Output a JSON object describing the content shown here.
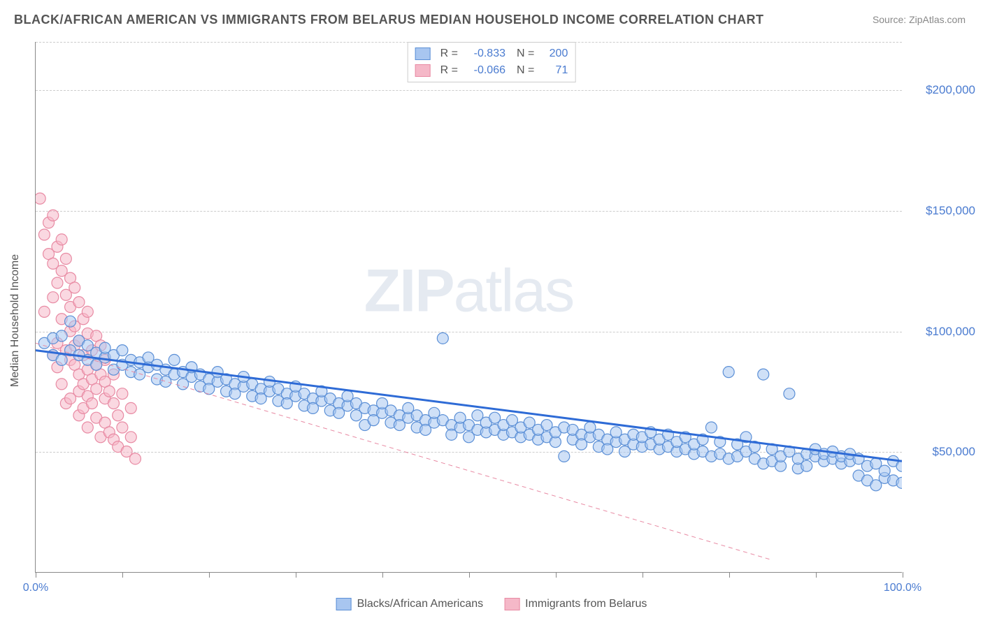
{
  "title": "BLACK/AFRICAN AMERICAN VS IMMIGRANTS FROM BELARUS MEDIAN HOUSEHOLD INCOME CORRELATION CHART",
  "source": "Source: ZipAtlas.com",
  "watermark_a": "ZIP",
  "watermark_b": "atlas",
  "chart": {
    "type": "scatter",
    "background_color": "#ffffff",
    "grid_color": "#cccccc",
    "axis_color": "#888888",
    "y_axis_label": "Median Household Income",
    "y_label_fontsize": 16,
    "x_domain": [
      0,
      100
    ],
    "y_domain": [
      0,
      220000
    ],
    "x_tick_positions": [
      0,
      10,
      20,
      30,
      40,
      50,
      60,
      70,
      80,
      90,
      100
    ],
    "x_tick_labels": {
      "0": "0.0%",
      "100": "100.0%"
    },
    "y_ticks": [
      {
        "v": 50000,
        "label": "$50,000"
      },
      {
        "v": 100000,
        "label": "$100,000"
      },
      {
        "v": 150000,
        "label": "$150,000"
      },
      {
        "v": 200000,
        "label": "$200,000"
      }
    ],
    "tick_label_color": "#4a7bd0",
    "tick_label_fontsize": 17,
    "marker_radius": 8,
    "marker_opacity": 0.55,
    "series": [
      {
        "name": "Blacks/African Americans",
        "fill_color": "#a8c6f0",
        "stroke_color": "#5b8fd6",
        "trend_color": "#2e6bd6",
        "trend_width": 3,
        "trend_dash": "none",
        "r": "-0.833",
        "r_label": "R =",
        "n": "200",
        "n_label": "N =",
        "trend_start": {
          "x": 0,
          "y": 92000
        },
        "trend_end": {
          "x": 100,
          "y": 46000
        },
        "points": [
          [
            1,
            95000
          ],
          [
            2,
            97000
          ],
          [
            2,
            90000
          ],
          [
            3,
            98000
          ],
          [
            3,
            88000
          ],
          [
            4,
            92000
          ],
          [
            4,
            104000
          ],
          [
            5,
            90000
          ],
          [
            5,
            96000
          ],
          [
            6,
            88000
          ],
          [
            6,
            94000
          ],
          [
            7,
            91000
          ],
          [
            7,
            86000
          ],
          [
            8,
            89000
          ],
          [
            8,
            93000
          ],
          [
            9,
            84000
          ],
          [
            9,
            90000
          ],
          [
            10,
            86000
          ],
          [
            10,
            92000
          ],
          [
            11,
            83000
          ],
          [
            11,
            88000
          ],
          [
            12,
            87000
          ],
          [
            12,
            82000
          ],
          [
            13,
            85000
          ],
          [
            13,
            89000
          ],
          [
            14,
            80000
          ],
          [
            14,
            86000
          ],
          [
            15,
            84000
          ],
          [
            15,
            79000
          ],
          [
            16,
            82000
          ],
          [
            16,
            88000
          ],
          [
            17,
            78000
          ],
          [
            17,
            83000
          ],
          [
            18,
            81000
          ],
          [
            18,
            85000
          ],
          [
            19,
            77000
          ],
          [
            19,
            82000
          ],
          [
            20,
            80000
          ],
          [
            20,
            76000
          ],
          [
            21,
            79000
          ],
          [
            21,
            83000
          ],
          [
            22,
            75000
          ],
          [
            22,
            80000
          ],
          [
            23,
            78000
          ],
          [
            23,
            74000
          ],
          [
            24,
            77000
          ],
          [
            24,
            81000
          ],
          [
            25,
            73000
          ],
          [
            25,
            78000
          ],
          [
            26,
            76000
          ],
          [
            26,
            72000
          ],
          [
            27,
            75000
          ],
          [
            27,
            79000
          ],
          [
            28,
            71000
          ],
          [
            28,
            76000
          ],
          [
            29,
            74000
          ],
          [
            29,
            70000
          ],
          [
            30,
            73000
          ],
          [
            30,
            77000
          ],
          [
            31,
            69000
          ],
          [
            31,
            74000
          ],
          [
            32,
            72000
          ],
          [
            32,
            68000
          ],
          [
            33,
            71000
          ],
          [
            33,
            75000
          ],
          [
            34,
            67000
          ],
          [
            34,
            72000
          ],
          [
            35,
            70000
          ],
          [
            35,
            66000
          ],
          [
            36,
            69000
          ],
          [
            36,
            73000
          ],
          [
            37,
            65000
          ],
          [
            37,
            70000
          ],
          [
            38,
            61000
          ],
          [
            38,
            68000
          ],
          [
            39,
            67000
          ],
          [
            39,
            63000
          ],
          [
            40,
            66000
          ],
          [
            40,
            70000
          ],
          [
            41,
            62000
          ],
          [
            41,
            67000
          ],
          [
            42,
            65000
          ],
          [
            42,
            61000
          ],
          [
            43,
            64000
          ],
          [
            43,
            68000
          ],
          [
            44,
            60000
          ],
          [
            44,
            65000
          ],
          [
            45,
            63000
          ],
          [
            45,
            59000
          ],
          [
            46,
            62000
          ],
          [
            46,
            66000
          ],
          [
            47,
            97000
          ],
          [
            47,
            63000
          ],
          [
            48,
            61000
          ],
          [
            48,
            57000
          ],
          [
            49,
            60000
          ],
          [
            49,
            64000
          ],
          [
            50,
            56000
          ],
          [
            50,
            61000
          ],
          [
            51,
            59000
          ],
          [
            51,
            65000
          ],
          [
            52,
            58000
          ],
          [
            52,
            62000
          ],
          [
            53,
            64000
          ],
          [
            53,
            59000
          ],
          [
            54,
            57000
          ],
          [
            54,
            61000
          ],
          [
            55,
            63000
          ],
          [
            55,
            58000
          ],
          [
            56,
            56000
          ],
          [
            56,
            60000
          ],
          [
            57,
            62000
          ],
          [
            57,
            57000
          ],
          [
            58,
            55000
          ],
          [
            58,
            59000
          ],
          [
            59,
            61000
          ],
          [
            59,
            56000
          ],
          [
            60,
            54000
          ],
          [
            60,
            58000
          ],
          [
            61,
            60000
          ],
          [
            61,
            48000
          ],
          [
            62,
            55000
          ],
          [
            62,
            59000
          ],
          [
            63,
            57000
          ],
          [
            63,
            53000
          ],
          [
            64,
            56000
          ],
          [
            64,
            60000
          ],
          [
            65,
            52000
          ],
          [
            65,
            57000
          ],
          [
            66,
            55000
          ],
          [
            66,
            51000
          ],
          [
            67,
            54000
          ],
          [
            67,
            58000
          ],
          [
            68,
            50000
          ],
          [
            68,
            55000
          ],
          [
            69,
            53000
          ],
          [
            69,
            57000
          ],
          [
            70,
            52000
          ],
          [
            70,
            56000
          ],
          [
            71,
            58000
          ],
          [
            71,
            53000
          ],
          [
            72,
            51000
          ],
          [
            72,
            55000
          ],
          [
            73,
            57000
          ],
          [
            73,
            52000
          ],
          [
            74,
            50000
          ],
          [
            74,
            54000
          ],
          [
            75,
            56000
          ],
          [
            75,
            51000
          ],
          [
            76,
            49000
          ],
          [
            76,
            53000
          ],
          [
            77,
            55000
          ],
          [
            77,
            50000
          ],
          [
            78,
            48000
          ],
          [
            78,
            60000
          ],
          [
            79,
            54000
          ],
          [
            79,
            49000
          ],
          [
            80,
            47000
          ],
          [
            80,
            83000
          ],
          [
            81,
            53000
          ],
          [
            81,
            48000
          ],
          [
            82,
            56000
          ],
          [
            82,
            50000
          ],
          [
            83,
            52000
          ],
          [
            83,
            47000
          ],
          [
            84,
            45000
          ],
          [
            84,
            82000
          ],
          [
            85,
            51000
          ],
          [
            85,
            46000
          ],
          [
            86,
            44000
          ],
          [
            86,
            48000
          ],
          [
            87,
            50000
          ],
          [
            87,
            74000
          ],
          [
            88,
            43000
          ],
          [
            88,
            47000
          ],
          [
            89,
            49000
          ],
          [
            89,
            44000
          ],
          [
            90,
            48000
          ],
          [
            90,
            51000
          ],
          [
            91,
            46000
          ],
          [
            91,
            49000
          ],
          [
            92,
            47000
          ],
          [
            92,
            50000
          ],
          [
            93,
            45000
          ],
          [
            93,
            48000
          ],
          [
            94,
            46000
          ],
          [
            94,
            49000
          ],
          [
            95,
            40000
          ],
          [
            95,
            47000
          ],
          [
            96,
            38000
          ],
          [
            96,
            44000
          ],
          [
            97,
            36000
          ],
          [
            97,
            45000
          ],
          [
            98,
            39000
          ],
          [
            98,
            42000
          ],
          [
            99,
            38000
          ],
          [
            99,
            46000
          ],
          [
            100,
            37000
          ],
          [
            100,
            44000
          ]
        ]
      },
      {
        "name": "Immigrants from Belarus",
        "fill_color": "#f5b8c8",
        "stroke_color": "#e88aa3",
        "trend_color": "#e88aa3",
        "trend_width": 1,
        "trend_dash": "6,5",
        "r": "-0.066",
        "r_label": "R =",
        "n": "71",
        "n_label": "N =",
        "trend_start": {
          "x": 0,
          "y": 95000
        },
        "trend_end": {
          "x": 85,
          "y": 5000
        },
        "points": [
          [
            0.5,
            155000
          ],
          [
            1,
            140000
          ],
          [
            1,
            108000
          ],
          [
            1.5,
            145000
          ],
          [
            1.5,
            132000
          ],
          [
            2,
            148000
          ],
          [
            2,
            90000
          ],
          [
            2,
            128000
          ],
          [
            2,
            114000
          ],
          [
            2.5,
            135000
          ],
          [
            2.5,
            120000
          ],
          [
            2.5,
            95000
          ],
          [
            2.5,
            85000
          ],
          [
            3,
            125000
          ],
          [
            3,
            138000
          ],
          [
            3,
            105000
          ],
          [
            3,
            78000
          ],
          [
            3.5,
            115000
          ],
          [
            3.5,
            130000
          ],
          [
            3.5,
            92000
          ],
          [
            3.5,
            70000
          ],
          [
            4,
            110000
          ],
          [
            4,
            122000
          ],
          [
            4,
            88000
          ],
          [
            4,
            100000
          ],
          [
            4,
            72000
          ],
          [
            4.5,
            102000
          ],
          [
            4.5,
            118000
          ],
          [
            4.5,
            86000
          ],
          [
            4.5,
            94000
          ],
          [
            5,
            96000
          ],
          [
            5,
            112000
          ],
          [
            5,
            82000
          ],
          [
            5,
            75000
          ],
          [
            5,
            65000
          ],
          [
            5.5,
            105000
          ],
          [
            5.5,
            90000
          ],
          [
            5.5,
            78000
          ],
          [
            5.5,
            68000
          ],
          [
            6,
            99000
          ],
          [
            6,
            108000
          ],
          [
            6,
            84000
          ],
          [
            6,
            73000
          ],
          [
            6,
            60000
          ],
          [
            6.5,
            92000
          ],
          [
            6.5,
            80000
          ],
          [
            6.5,
            70000
          ],
          [
            7,
            86000
          ],
          [
            7,
            98000
          ],
          [
            7,
            76000
          ],
          [
            7,
            64000
          ],
          [
            7.5,
            56000
          ],
          [
            7.5,
            82000
          ],
          [
            7.5,
            94000
          ],
          [
            8,
            72000
          ],
          [
            8,
            88000
          ],
          [
            8,
            62000
          ],
          [
            8,
            79000
          ],
          [
            8.5,
            75000
          ],
          [
            8.5,
            58000
          ],
          [
            9,
            55000
          ],
          [
            9,
            70000
          ],
          [
            9,
            82000
          ],
          [
            9.5,
            65000
          ],
          [
            9.5,
            52000
          ],
          [
            10,
            60000
          ],
          [
            10,
            74000
          ],
          [
            10.5,
            50000
          ],
          [
            11,
            56000
          ],
          [
            11,
            68000
          ],
          [
            11.5,
            47000
          ]
        ]
      }
    ]
  },
  "legend_bottom": [
    {
      "label": "Blacks/African Americans",
      "fill": "#a8c6f0",
      "stroke": "#5b8fd6"
    },
    {
      "label": "Immigrants from Belarus",
      "fill": "#f5b8c8",
      "stroke": "#e88aa3"
    }
  ]
}
